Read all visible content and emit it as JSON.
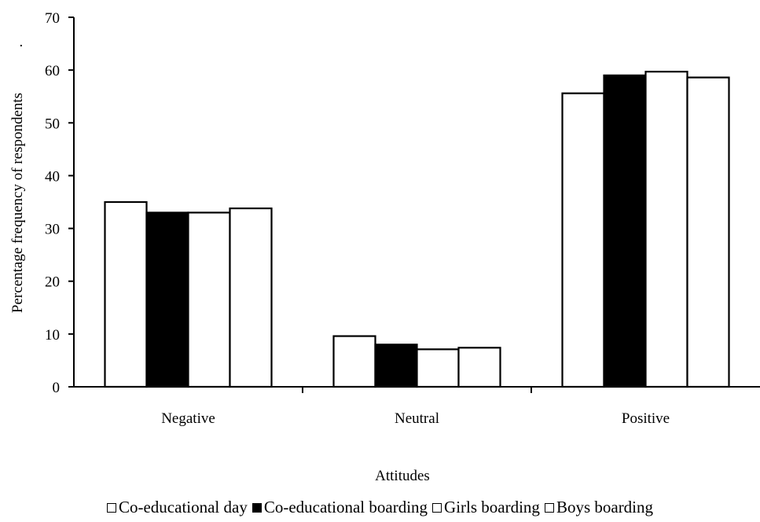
{
  "chart_data": {
    "type": "bar",
    "categories": [
      "Negative",
      "Neutral",
      "Positive"
    ],
    "series": [
      {
        "name": "Co-educational day",
        "values": [
          35,
          9.6,
          55.6
        ],
        "color": "#ffffff"
      },
      {
        "name": "Co-educational boarding",
        "values": [
          33,
          8,
          59
        ],
        "color": "#000000"
      },
      {
        "name": "Girls boarding",
        "values": [
          33,
          7.1,
          59.7
        ],
        "color": "#ffffff"
      },
      {
        "name": "Boys boarding",
        "values": [
          33.8,
          7.4,
          58.6
        ],
        "color": "#ffffff"
      }
    ],
    "xlabel": "Attitudes",
    "ylabel": "Percentage frequency of respondents",
    "ylabel_suffix": ".",
    "ylim": [
      0,
      70
    ],
    "yticks": [
      0,
      10,
      20,
      30,
      40,
      50,
      60,
      70
    ],
    "grid": false,
    "legend_position": "bottom"
  }
}
